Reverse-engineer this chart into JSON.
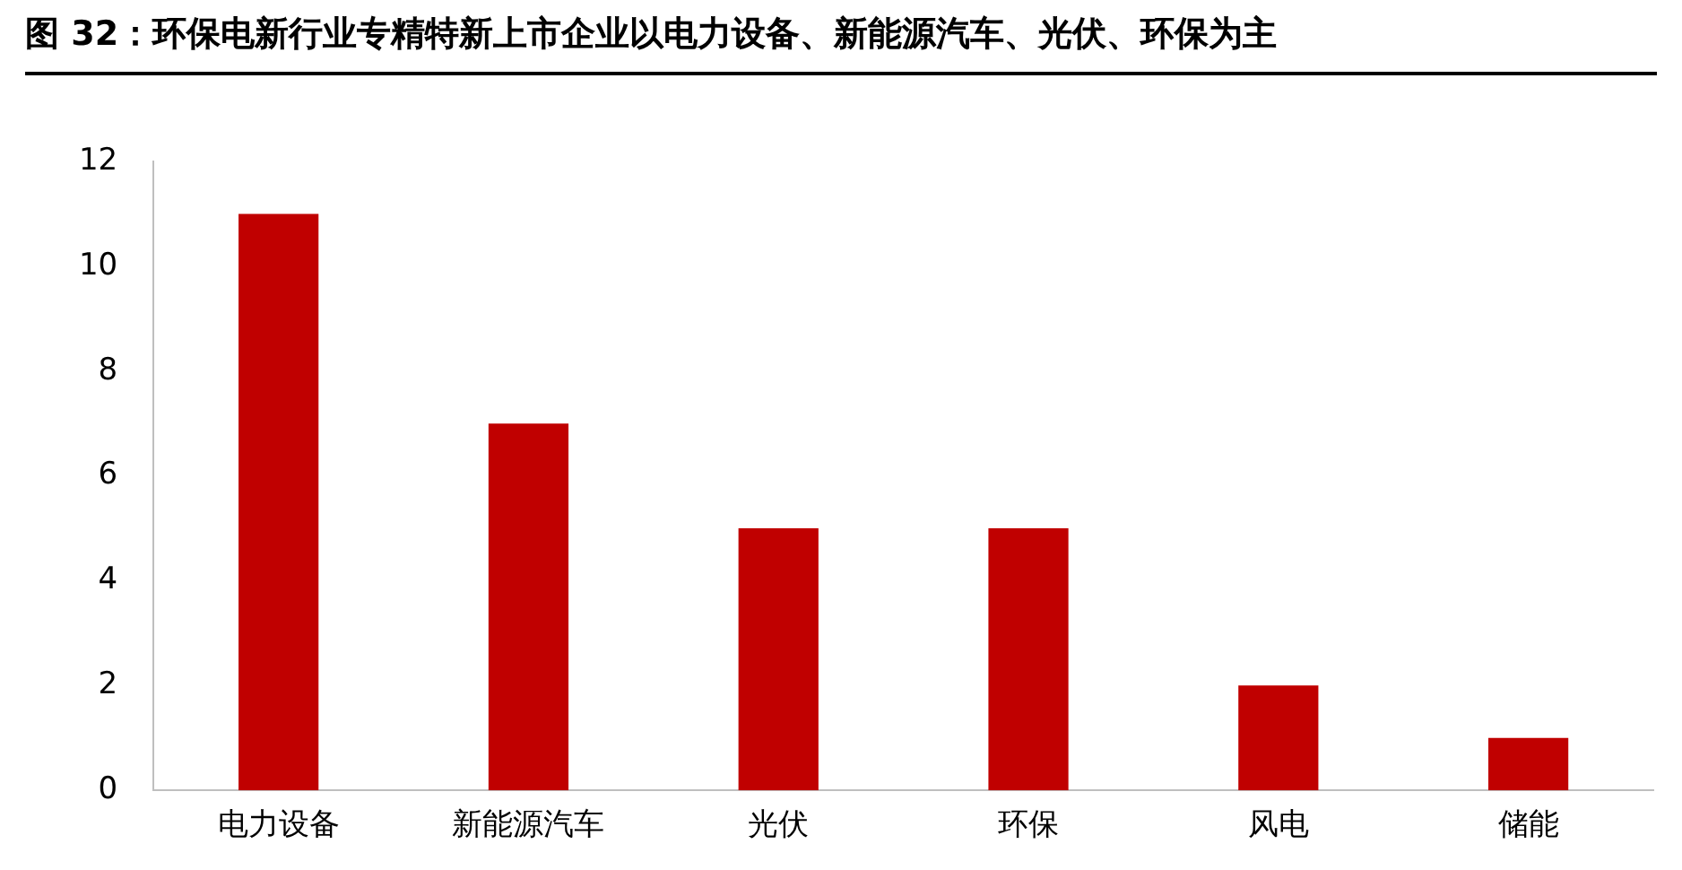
{
  "chart_data": {
    "type": "bar",
    "title": "图 32：环保电新行业专精特新上市企业以电力设备、新能源汽车、光伏、环保为主",
    "categories": [
      "电力设备",
      "新能源汽车",
      "光伏",
      "环保",
      "风电",
      "储能"
    ],
    "values": [
      11,
      7,
      5,
      5,
      2,
      1
    ],
    "color": "#c00000",
    "ylim": [
      0,
      12
    ],
    "yticks": [
      0,
      2,
      4,
      6,
      8,
      10,
      12
    ],
    "grid": false
  }
}
